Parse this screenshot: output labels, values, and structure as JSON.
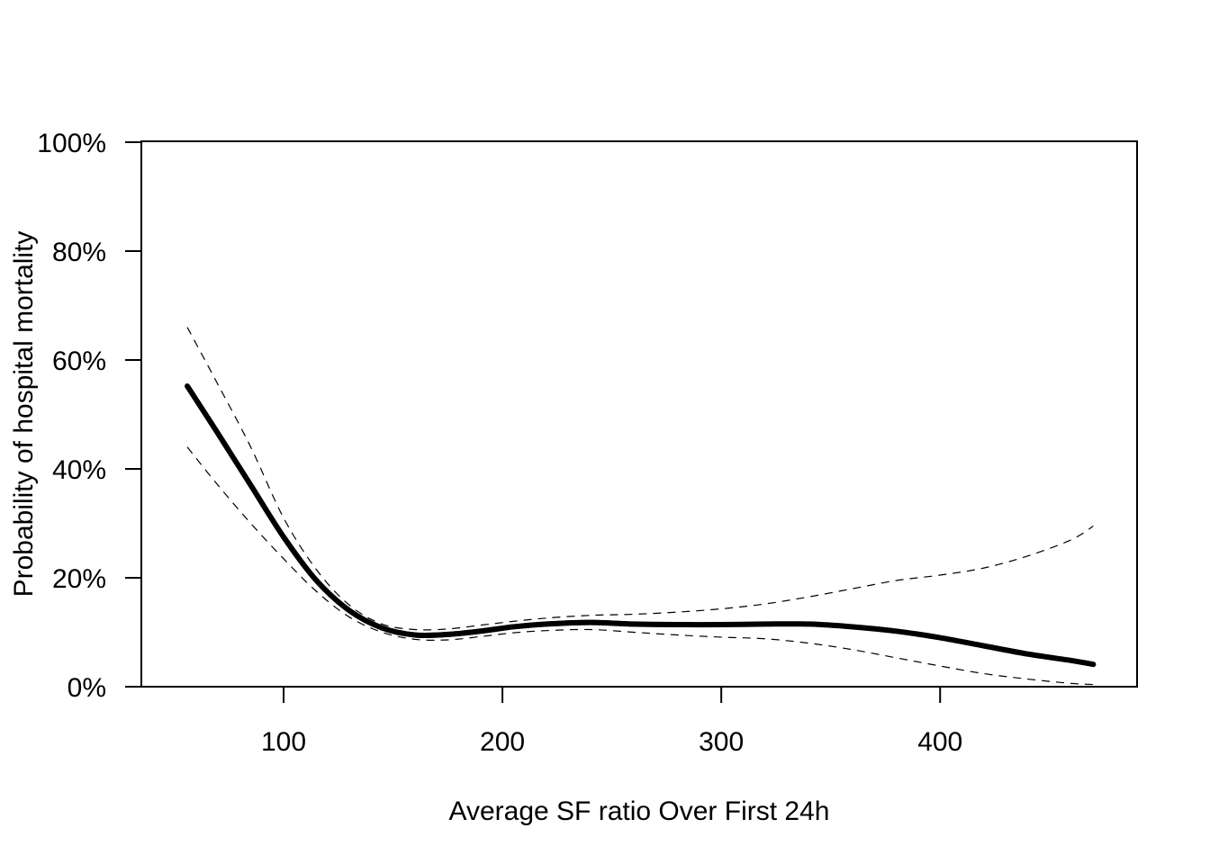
{
  "chart_data": {
    "type": "line",
    "xlabel": "Average SF ratio Over First 24h",
    "ylabel": "Probability of hospital mortality",
    "xlim": [
      35,
      490
    ],
    "ylim": [
      0,
      100
    ],
    "x_ticks": [
      100,
      200,
      300,
      400
    ],
    "x_tick_labels": [
      "100",
      "200",
      "300",
      "400"
    ],
    "y_ticks": [
      0,
      20,
      40,
      60,
      80,
      100
    ],
    "y_tick_labels": [
      "0%",
      "20%",
      "40%",
      "60%",
      "80%",
      "100%"
    ],
    "grid": false,
    "series": [
      {
        "role": "estimate",
        "style": "solid-thick",
        "color": "#000000",
        "x": [
          56,
          70,
          85,
          100,
          115,
          130,
          145,
          160,
          175,
          190,
          205,
          220,
          240,
          260,
          280,
          300,
          320,
          340,
          360,
          380,
          400,
          420,
          440,
          460,
          470
        ],
        "y": [
          55.2,
          46.5,
          37,
          27.5,
          19.5,
          14,
          10.8,
          9.5,
          9.6,
          10.2,
          11,
          11.5,
          11.8,
          11.5,
          11.4,
          11.4,
          11.5,
          11.5,
          11,
          10.2,
          9,
          7.5,
          6,
          4.8,
          4.1
        ]
      },
      {
        "role": "upper-ci",
        "style": "dashed",
        "color": "#000000",
        "x": [
          56,
          70,
          85,
          100,
          115,
          130,
          145,
          160,
          175,
          190,
          205,
          220,
          240,
          260,
          280,
          300,
          320,
          340,
          360,
          380,
          400,
          420,
          440,
          460,
          470
        ],
        "y": [
          66,
          55.5,
          44,
          31,
          21.5,
          15,
          11.5,
          10.5,
          10.6,
          11.3,
          12,
          12.6,
          13.1,
          13.3,
          13.7,
          14.3,
          15.2,
          16.5,
          18,
          19.5,
          20.5,
          21.8,
          24,
          27,
          29.5
        ]
      },
      {
        "role": "lower-ci",
        "style": "dashed",
        "color": "#000000",
        "x": [
          56,
          70,
          85,
          100,
          115,
          130,
          145,
          160,
          175,
          190,
          205,
          220,
          240,
          260,
          280,
          300,
          320,
          340,
          360,
          380,
          400,
          420,
          440,
          460,
          470
        ],
        "y": [
          44,
          37,
          30,
          23.5,
          17.5,
          12.8,
          10,
          8.7,
          8.6,
          9.2,
          9.9,
          10.3,
          10.5,
          10,
          9.5,
          9.1,
          8.8,
          8,
          6.8,
          5.3,
          3.8,
          2.4,
          1.4,
          0.6,
          0.4
        ]
      }
    ]
  }
}
